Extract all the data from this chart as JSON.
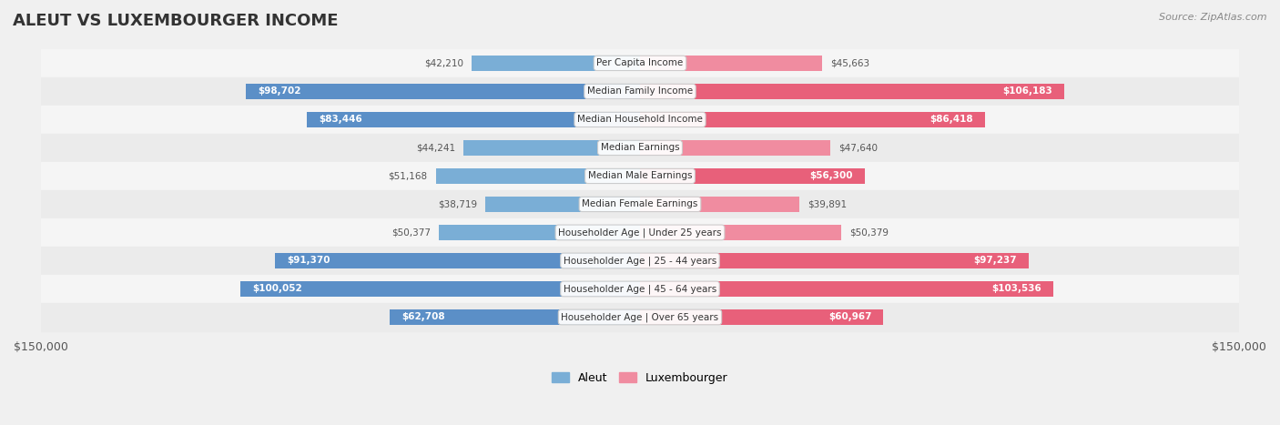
{
  "title": "ALEUT VS LUXEMBOURGER INCOME",
  "source": "Source: ZipAtlas.com",
  "categories": [
    "Per Capita Income",
    "Median Family Income",
    "Median Household Income",
    "Median Earnings",
    "Median Male Earnings",
    "Median Female Earnings",
    "Householder Age | Under 25 years",
    "Householder Age | 25 - 44 years",
    "Householder Age | 45 - 64 years",
    "Householder Age | Over 65 years"
  ],
  "aleut_values": [
    42210,
    98702,
    83446,
    44241,
    51168,
    38719,
    50377,
    91370,
    100052,
    62708
  ],
  "luxembourger_values": [
    45663,
    106183,
    86418,
    47640,
    56300,
    39891,
    50379,
    97237,
    103536,
    60967
  ],
  "aleut_labels": [
    "$42,210",
    "$98,702",
    "$83,446",
    "$44,241",
    "$51,168",
    "$38,719",
    "$50,377",
    "$91,370",
    "$100,052",
    "$62,708"
  ],
  "luxembourger_labels": [
    "$45,663",
    "$106,183",
    "$86,418",
    "$47,640",
    "$56,300",
    "$39,891",
    "$50,379",
    "$97,237",
    "$103,536",
    "$60,967"
  ],
  "aleut_color": "#7aaed6",
  "aleut_color_dark": "#5b8fc7",
  "luxembourger_color": "#f08ca0",
  "luxembourger_color_dark": "#e8607a",
  "max_value": 150000,
  "background_color": "#f0f0f0",
  "bar_bg_color": "#e8e8e8",
  "row_bg_odd": "#f5f5f5",
  "row_bg_even": "#ebebeb"
}
